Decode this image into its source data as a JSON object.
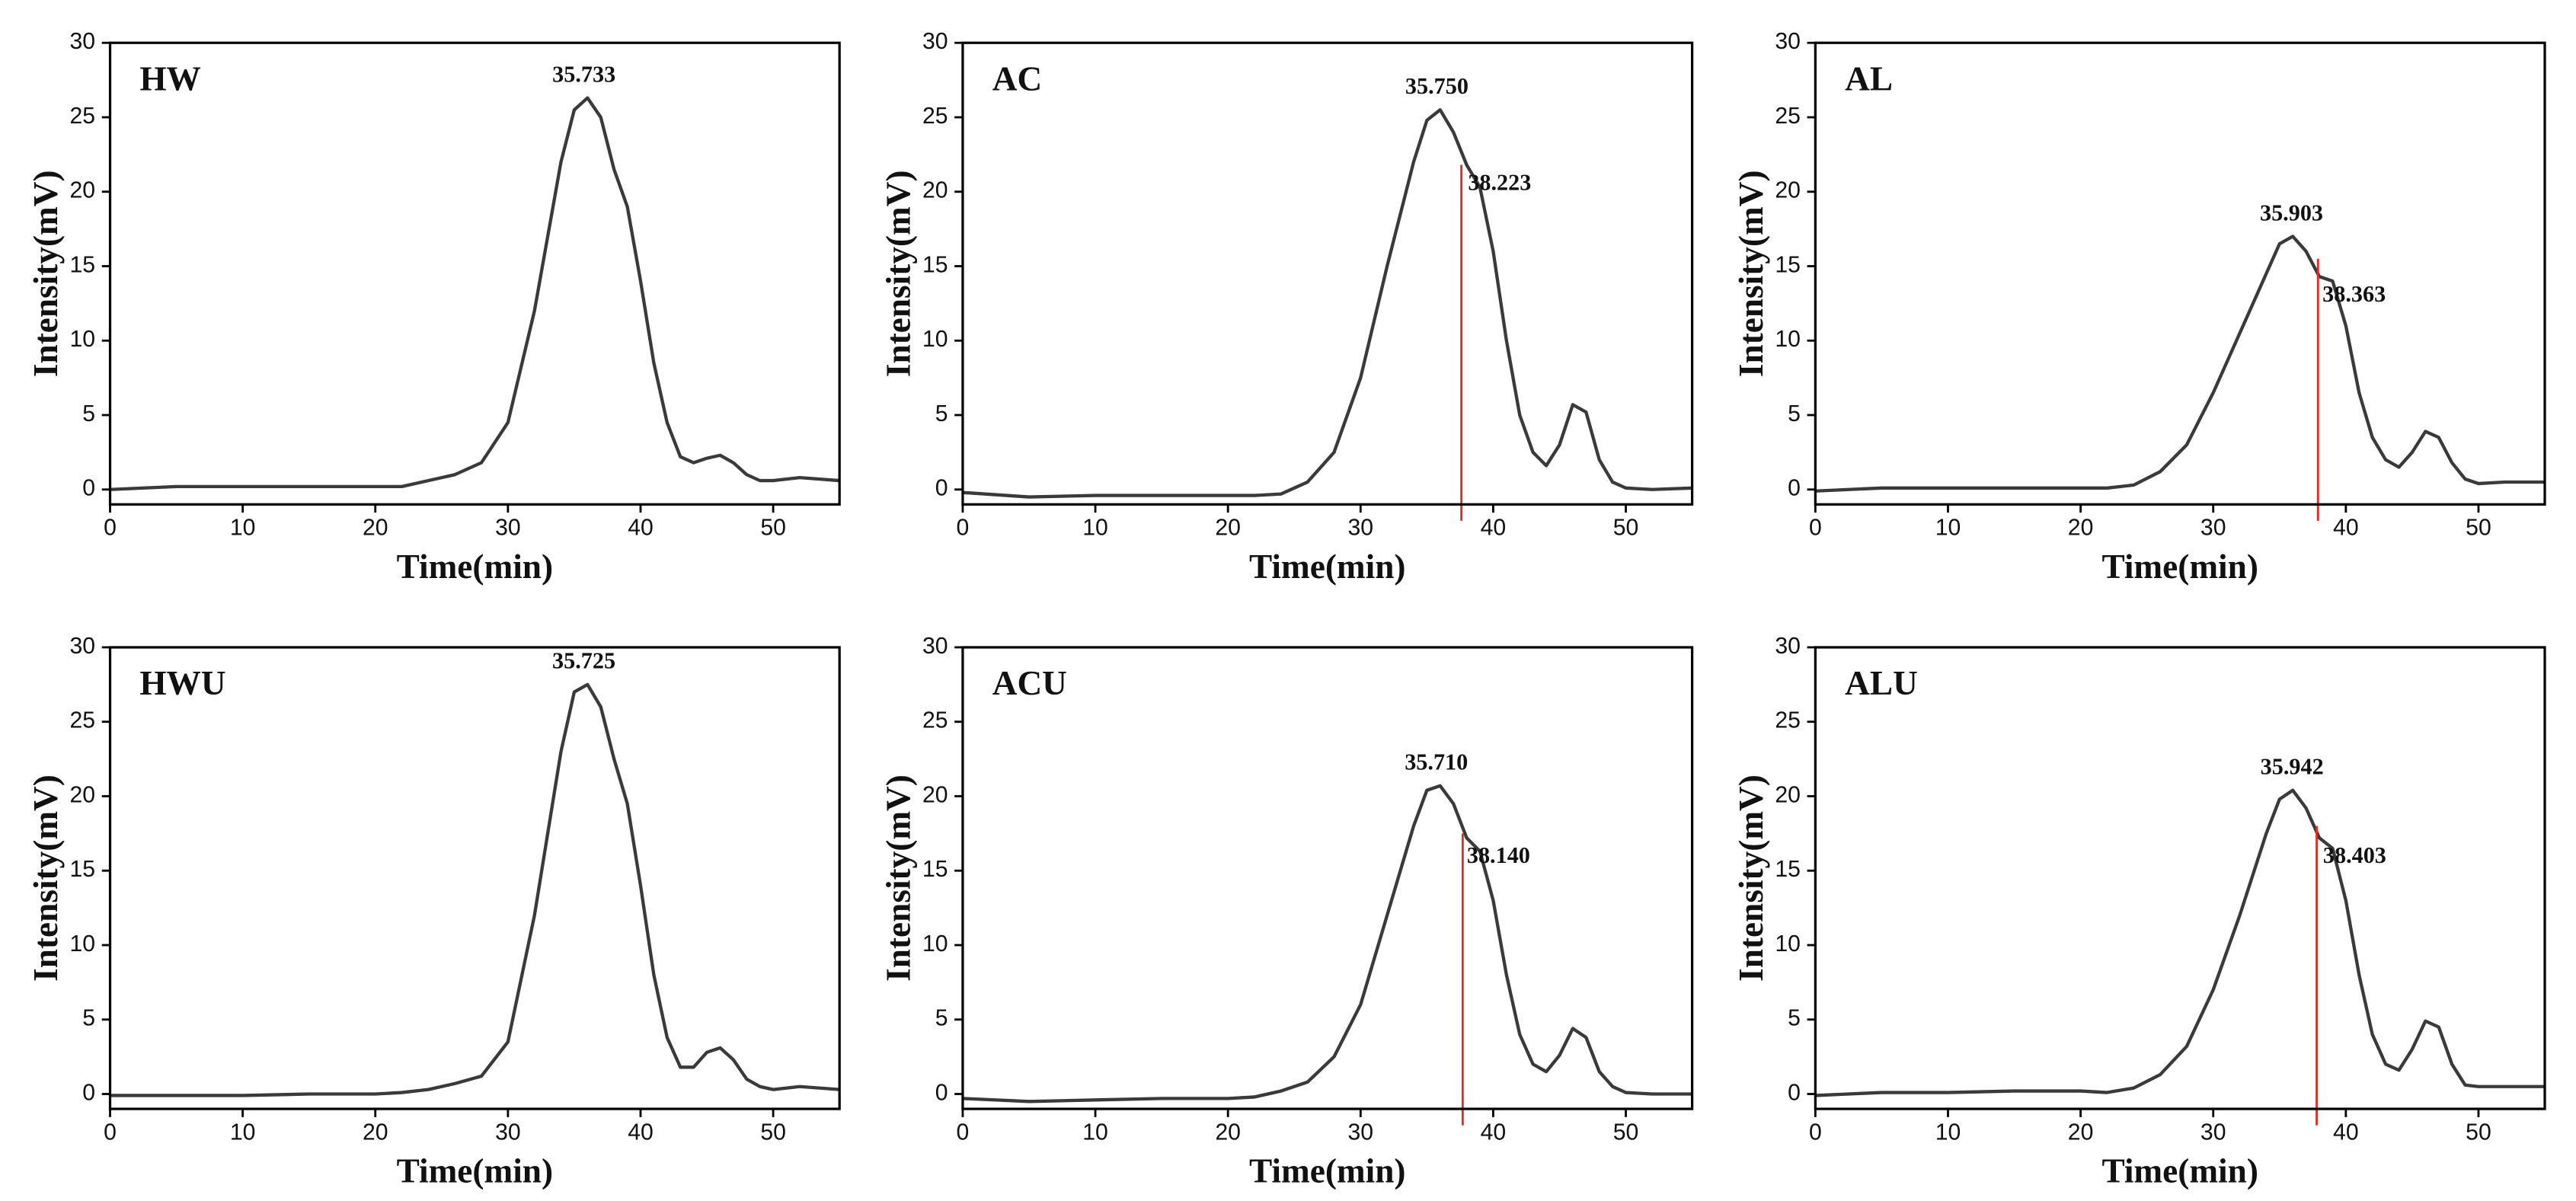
{
  "chart_data": [
    {
      "type": "line",
      "title": "HW",
      "xlabel": "Time(min)",
      "ylabel": "Intensity(mV)",
      "x": [
        0,
        5,
        10,
        15,
        20,
        22,
        24,
        26,
        28,
        30,
        32,
        34,
        35,
        36,
        37,
        38,
        39,
        40,
        41,
        42,
        43,
        44,
        45,
        46,
        47,
        48,
        49,
        50,
        52,
        55
      ],
      "series": [
        {
          "color": "#3a3a3a",
          "values": [
            0.0,
            0.2,
            0.2,
            0.2,
            0.2,
            0.2,
            0.6,
            1.0,
            1.8,
            4.5,
            12,
            22,
            25.5,
            26.3,
            25,
            21.5,
            19,
            14,
            8.5,
            4.5,
            2.2,
            1.8,
            2.1,
            2.3,
            1.8,
            1.0,
            0.6,
            0.6,
            0.8,
            0.6
          ]
        }
      ],
      "peaks": [
        {
          "value": 35.733,
          "label": "35.733",
          "y": 26.3
        }
      ],
      "markers": [],
      "xlim": [
        0,
        55
      ],
      "ylim": [
        -1,
        30
      ],
      "xticks": [
        0,
        10,
        20,
        30,
        40,
        50
      ],
      "yticks": [
        0,
        5,
        10,
        15,
        20,
        25,
        30
      ]
    },
    {
      "type": "line",
      "title": "AC",
      "xlabel": "Time(min)",
      "ylabel": "Intensity(mV)",
      "x": [
        0,
        5,
        10,
        15,
        20,
        22,
        24,
        26,
        28,
        30,
        32,
        34,
        35,
        36,
        37,
        38,
        39,
        40,
        41,
        42,
        43,
        44,
        45,
        46,
        47,
        48,
        49,
        50,
        52,
        55
      ],
      "series": [
        {
          "color": "#3a3a3a",
          "values": [
            -0.2,
            -0.5,
            -0.4,
            -0.4,
            -0.4,
            -0.4,
            -0.3,
            0.5,
            2.5,
            7.5,
            15,
            22,
            24.8,
            25.5,
            24,
            21.8,
            20.3,
            16,
            10,
            5,
            2.5,
            1.6,
            3,
            5.7,
            5.2,
            2,
            0.5,
            0.1,
            0,
            0.1
          ]
        }
      ],
      "peaks": [
        {
          "value": 35.75,
          "label": "35.750",
          "y": 25.5
        },
        {
          "value": 38.223,
          "label": "38.223",
          "y": 21.8
        }
      ],
      "markers": [
        {
          "x": 37.6,
          "y": 21.8,
          "color": "#e8271f"
        }
      ],
      "xlim": [
        0,
        55
      ],
      "ylim": [
        -1,
        30
      ],
      "xticks": [
        0,
        10,
        20,
        30,
        40,
        50
      ],
      "yticks": [
        0,
        5,
        10,
        15,
        20,
        25,
        30
      ]
    },
    {
      "type": "line",
      "title": "AL",
      "xlabel": "Time(min)",
      "ylabel": "Intensity(mV)",
      "x": [
        0,
        5,
        10,
        15,
        20,
        22,
        24,
        26,
        28,
        30,
        32,
        34,
        35,
        36,
        37,
        38,
        39,
        40,
        41,
        42,
        43,
        44,
        45,
        46,
        47,
        48,
        49,
        50,
        52,
        55
      ],
      "series": [
        {
          "color": "#3a3a3a",
          "values": [
            -0.1,
            0.1,
            0.1,
            0.1,
            0.1,
            0.1,
            0.3,
            1.2,
            3,
            6.5,
            10.5,
            14.5,
            16.5,
            17,
            16,
            14.3,
            14,
            11,
            6.5,
            3.5,
            2,
            1.5,
            2.5,
            3.9,
            3.5,
            1.8,
            0.7,
            0.4,
            0.5,
            0.5
          ]
        }
      ],
      "peaks": [
        {
          "value": 35.903,
          "label": "35.903",
          "y": 17
        },
        {
          "value": 38.363,
          "label": "38.363",
          "y": 14.3
        }
      ],
      "markers": [
        {
          "x": 37.9,
          "y": 15.5,
          "color": "#e8271f"
        }
      ],
      "xlim": [
        0,
        55
      ],
      "ylim": [
        -1,
        30
      ],
      "xticks": [
        0,
        10,
        20,
        30,
        40,
        50
      ],
      "yticks": [
        0,
        5,
        10,
        15,
        20,
        25,
        30
      ]
    },
    {
      "type": "line",
      "title": "HWU",
      "xlabel": "Time(min)",
      "ylabel": "Intensity(mV)",
      "x": [
        0,
        5,
        10,
        15,
        20,
        22,
        24,
        26,
        28,
        30,
        32,
        34,
        35,
        36,
        37,
        38,
        39,
        40,
        41,
        42,
        43,
        44,
        45,
        46,
        47,
        48,
        49,
        50,
        52,
        55
      ],
      "series": [
        {
          "color": "#3a3a3a",
          "values": [
            -0.1,
            -0.1,
            -0.1,
            0,
            0,
            0.1,
            0.3,
            0.7,
            1.2,
            3.5,
            12,
            23,
            27,
            27.5,
            26,
            22.5,
            19.5,
            14,
            8,
            3.8,
            1.8,
            1.8,
            2.8,
            3.1,
            2.3,
            1,
            0.5,
            0.3,
            0.5,
            0.3
          ]
        }
      ],
      "peaks": [
        {
          "value": 35.725,
          "label": "35.725",
          "y": 27.5
        }
      ],
      "markers": [],
      "xlim": [
        0,
        55
      ],
      "ylim": [
        -1,
        30
      ],
      "xticks": [
        0,
        10,
        20,
        30,
        40,
        50
      ],
      "yticks": [
        0,
        5,
        10,
        15,
        20,
        25,
        30
      ]
    },
    {
      "type": "line",
      "title": "ACU",
      "xlabel": "Time(min)",
      "ylabel": "Intensity(mV)",
      "x": [
        0,
        5,
        10,
        15,
        20,
        22,
        24,
        26,
        28,
        30,
        32,
        34,
        35,
        36,
        37,
        38,
        39,
        40,
        41,
        42,
        43,
        44,
        45,
        46,
        47,
        48,
        49,
        50,
        52,
        55
      ],
      "series": [
        {
          "color": "#3a3a3a",
          "values": [
            -0.3,
            -0.5,
            -0.4,
            -0.3,
            -0.3,
            -0.2,
            0.2,
            0.8,
            2.5,
            6,
            12,
            18,
            20.4,
            20.7,
            19.5,
            17.2,
            16.3,
            13,
            8,
            4,
            2,
            1.5,
            2.6,
            4.4,
            3.8,
            1.5,
            0.5,
            0.1,
            0,
            0
          ]
        }
      ],
      "peaks": [
        {
          "value": 35.71,
          "label": "35.710",
          "y": 20.7
        },
        {
          "value": 38.14,
          "label": "38.140",
          "y": 17.2
        }
      ],
      "markers": [
        {
          "x": 37.7,
          "y": 17.5,
          "color": "#e8271f"
        }
      ],
      "xlim": [
        0,
        55
      ],
      "ylim": [
        -1,
        30
      ],
      "xticks": [
        0,
        10,
        20,
        30,
        40,
        50
      ],
      "yticks": [
        0,
        5,
        10,
        15,
        20,
        25,
        30
      ]
    },
    {
      "type": "line",
      "title": "ALU",
      "xlabel": "Time(min)",
      "ylabel": "Intensity(mV)",
      "x": [
        0,
        5,
        10,
        15,
        20,
        22,
        24,
        26,
        28,
        30,
        32,
        34,
        35,
        36,
        37,
        38,
        39,
        40,
        41,
        42,
        43,
        44,
        45,
        46,
        47,
        48,
        49,
        50,
        52,
        55
      ],
      "series": [
        {
          "color": "#3a3a3a",
          "values": [
            -0.1,
            0.1,
            0.1,
            0.2,
            0.2,
            0.1,
            0.4,
            1.3,
            3.2,
            7,
            12,
            17.5,
            19.8,
            20.4,
            19.2,
            17.2,
            16.5,
            13,
            8,
            4,
            2,
            1.6,
            3,
            4.9,
            4.5,
            2,
            0.6,
            0.5,
            0.5,
            0.5
          ]
        }
      ],
      "peaks": [
        {
          "value": 35.942,
          "label": "35.942",
          "y": 20.4
        },
        {
          "value": 38.403,
          "label": "38.403",
          "y": 17.2
        }
      ],
      "markers": [
        {
          "x": 37.8,
          "y": 18,
          "color": "#e8271f"
        }
      ],
      "xlim": [
        0,
        55
      ],
      "ylim": [
        -1,
        30
      ],
      "xticks": [
        0,
        10,
        20,
        30,
        40,
        50
      ],
      "yticks": [
        0,
        5,
        10,
        15,
        20,
        25,
        30
      ]
    }
  ]
}
